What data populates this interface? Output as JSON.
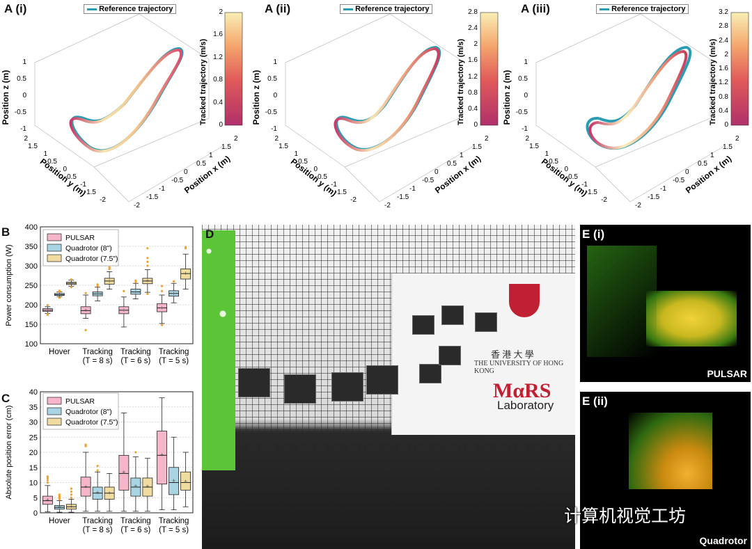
{
  "panel_a": [
    {
      "label": "A (i)",
      "legend": "Reference trajectory",
      "colorbar_title": "Tracked trajectory (m/s)",
      "colorbar_ticks": [
        "2",
        "1.6",
        "1.2",
        "0.8",
        "0.4",
        "0"
      ]
    },
    {
      "label": "A (ii)",
      "legend": "Reference trajectory",
      "colorbar_title": "Tracked trajectory (m/s)",
      "colorbar_ticks": [
        "2.8",
        "2.4",
        "2",
        "1.6",
        "1.2",
        "0.8",
        "0.4",
        "0"
      ]
    },
    {
      "label": "A (iii)",
      "legend": "Reference trajectory",
      "colorbar_title": "Tracked trajectory (m/s)",
      "colorbar_ticks": [
        "3.2",
        "2.8",
        "2.4",
        "2",
        "1.6",
        "1.2",
        "0.8",
        "0.4",
        "0"
      ]
    }
  ],
  "axes3d": {
    "zlabel": "Position z (m)",
    "ylabel": "Position y (m)",
    "xlabel": "Position x (m)",
    "zticks": [
      "1",
      "0.5",
      "0",
      "-0.5",
      "-1"
    ],
    "yticks": [
      "2",
      "1.5",
      "1",
      "0.5",
      "0",
      "-0.5",
      "-1",
      "-1.5",
      "-2"
    ],
    "xticks": [
      "-2",
      "-1.5",
      "-1",
      "-0.5",
      "0",
      "0.5",
      "1",
      "1.5",
      "2"
    ]
  },
  "panel_b": {
    "label": "B"
  },
  "panel_c": {
    "label": "C"
  },
  "panel_d": {
    "label": "D",
    "banner_cn": "香 港 大 學",
    "banner_en": "THE UNIVERSITY OF HONG KONG",
    "lab_name": "MαRS",
    "lab_sub": "Laboratory"
  },
  "panel_e": [
    {
      "label": "E (i)",
      "tag": "PULSAR"
    },
    {
      "label": "E (ii)",
      "tag": "Quadrotor"
    }
  ],
  "watermark": "计算机视觉工坊",
  "colors": {
    "pulsar": "#f4b6c8",
    "quad8": "#a9d4e2",
    "quad75": "#f0dca0",
    "reference": "#2a9db3"
  },
  "chart_data": [
    {
      "type": "box",
      "ylabel": "Power consumption (W)",
      "ylim": [
        100,
        400
      ],
      "yticks": [
        100,
        150,
        200,
        250,
        300,
        350,
        400
      ],
      "categories": [
        "Hover",
        "Tracking\n(T = 8 s)",
        "Tracking\n(T = 6 s)",
        "Tracking\n(T = 5 s)"
      ],
      "category_lines": [
        [
          "Hover"
        ],
        [
          "Tracking",
          "(T = 8 s)"
        ],
        [
          "Tracking",
          "(T = 6 s)"
        ],
        [
          "Tracking",
          "(T = 5 s)"
        ]
      ],
      "grid": true,
      "legend": "top-left",
      "series": [
        {
          "name": "PULSAR",
          "color": "#f4b6c8",
          "boxes": [
            {
              "lw": 178,
              "q1": 183,
              "med": 186,
              "q3": 190,
              "uw": 195,
              "mean": 186,
              "out": [
                174,
                176,
                199
              ]
            },
            {
              "lw": 165,
              "q1": 177,
              "med": 185,
              "q3": 195,
              "uw": 225,
              "mean": 186,
              "out": [
                135,
                230
              ]
            },
            {
              "lw": 143,
              "q1": 177,
              "med": 186,
              "q3": 195,
              "uw": 220,
              "mean": 186,
              "out": [
                235
              ]
            },
            {
              "lw": 152,
              "q1": 182,
              "med": 192,
              "q3": 203,
              "uw": 225,
              "mean": 192,
              "out": [
                148,
                235,
                248
              ]
            }
          ]
        },
        {
          "name": "Quadrotor (8\")",
          "color": "#a9d4e2",
          "boxes": [
            {
              "lw": 221,
              "q1": 224,
              "med": 226,
              "q3": 229,
              "uw": 233,
              "mean": 226,
              "out": [
                218,
                234,
                236
              ]
            },
            {
              "lw": 210,
              "q1": 223,
              "med": 228,
              "q3": 233,
              "uw": 245,
              "mean": 228,
              "out": [
                248,
                252
              ]
            },
            {
              "lw": 215,
              "q1": 227,
              "med": 233,
              "q3": 240,
              "uw": 255,
              "mean": 233,
              "out": [
                258,
                262
              ]
            },
            {
              "lw": 205,
              "q1": 222,
              "med": 229,
              "q3": 236,
              "uw": 255,
              "mean": 229,
              "out": [
                260
              ]
            }
          ]
        },
        {
          "name": "Quadrotor (7.5\")",
          "color": "#f0dca0",
          "boxes": [
            {
              "lw": 247,
              "q1": 252,
              "med": 255,
              "q3": 258,
              "uw": 263,
              "mean": 255,
              "out": [
                245,
                265
              ]
            },
            {
              "lw": 240,
              "q1": 253,
              "med": 261,
              "q3": 268,
              "uw": 285,
              "mean": 261,
              "out": [
                292,
                296
              ]
            },
            {
              "lw": 232,
              "q1": 254,
              "med": 261,
              "q3": 268,
              "uw": 290,
              "mean": 262,
              "out": [
                228,
                300,
                310,
                320,
                345
              ]
            },
            {
              "lw": 240,
              "q1": 266,
              "med": 280,
              "q3": 292,
              "uw": 330,
              "mean": 280,
              "out": [
                345,
                348
              ]
            }
          ]
        }
      ]
    },
    {
      "type": "box",
      "ylabel": "Absolute position error (cm)",
      "ylim": [
        0,
        40
      ],
      "yticks": [
        0,
        5,
        10,
        15,
        20,
        25,
        30,
        35,
        40
      ],
      "categories": [
        "Hover",
        "Tracking\n(T = 8 s)",
        "Tracking\n(T = 6 s)",
        "Tracking\n(T = 5 s)"
      ],
      "category_lines": [
        [
          "Hover"
        ],
        [
          "Tracking",
          "(T = 8 s)"
        ],
        [
          "Tracking",
          "(T = 6 s)"
        ],
        [
          "Tracking",
          "(T = 5 s)"
        ]
      ],
      "grid": true,
      "legend": "top-left",
      "series": [
        {
          "name": "PULSAR",
          "color": "#f4b6c8",
          "boxes": [
            {
              "lw": 0.3,
              "q1": 2.8,
              "med": 4,
              "q3": 5.5,
              "uw": 9,
              "mean": 4.3,
              "out": [
                10,
                10.8,
                11.5,
                12
              ]
            },
            {
              "lw": 0.5,
              "q1": 5.5,
              "med": 8.5,
              "q3": 11.8,
              "uw": 20,
              "mean": 8.6,
              "out": [
                22,
                22.5
              ]
            },
            {
              "lw": 0.5,
              "q1": 7.5,
              "med": 13,
              "q3": 19,
              "uw": 33,
              "mean": 13.4,
              "out": []
            },
            {
              "lw": 1,
              "q1": 9.5,
              "med": 19,
              "q3": 27,
              "uw": 38,
              "mean": 19.2,
              "out": []
            }
          ]
        },
        {
          "name": "Quadrotor (8\")",
          "color": "#a9d4e2",
          "boxes": [
            {
              "lw": 0.2,
              "q1": 1.2,
              "med": 1.8,
              "q3": 2.4,
              "uw": 4,
              "mean": 1.9,
              "out": [
                4.5,
                5,
                5.5,
                6
              ]
            },
            {
              "lw": 0.5,
              "q1": 4.5,
              "med": 6.5,
              "q3": 8.5,
              "uw": 13.5,
              "mean": 6.7,
              "out": [
                14,
                15.5
              ]
            },
            {
              "lw": 0.5,
              "q1": 5.5,
              "med": 8.5,
              "q3": 11.5,
              "uw": 18.5,
              "mean": 8.8,
              "out": [
                20
              ]
            },
            {
              "lw": 1,
              "q1": 6,
              "med": 10,
              "q3": 15,
              "uw": 25,
              "mean": 10.6,
              "out": []
            }
          ]
        },
        {
          "name": "Quadrotor (7.5\")",
          "color": "#f0dca0",
          "boxes": [
            {
              "lw": 0.2,
              "q1": 1.2,
              "med": 2,
              "q3": 2.8,
              "uw": 4.5,
              "mean": 2.1,
              "out": [
                5,
                6,
                7,
                8
              ]
            },
            {
              "lw": 0.5,
              "q1": 4.5,
              "med": 6.5,
              "q3": 8.5,
              "uw": 13,
              "mean": 6.6,
              "out": []
            },
            {
              "lw": 0.5,
              "q1": 5.5,
              "med": 8.5,
              "q3": 11.5,
              "uw": 18,
              "mean": 8.7,
              "out": []
            },
            {
              "lw": 2,
              "q1": 7.5,
              "med": 10,
              "q3": 13.5,
              "uw": 20,
              "mean": 10.4,
              "out": []
            }
          ]
        }
      ]
    }
  ]
}
